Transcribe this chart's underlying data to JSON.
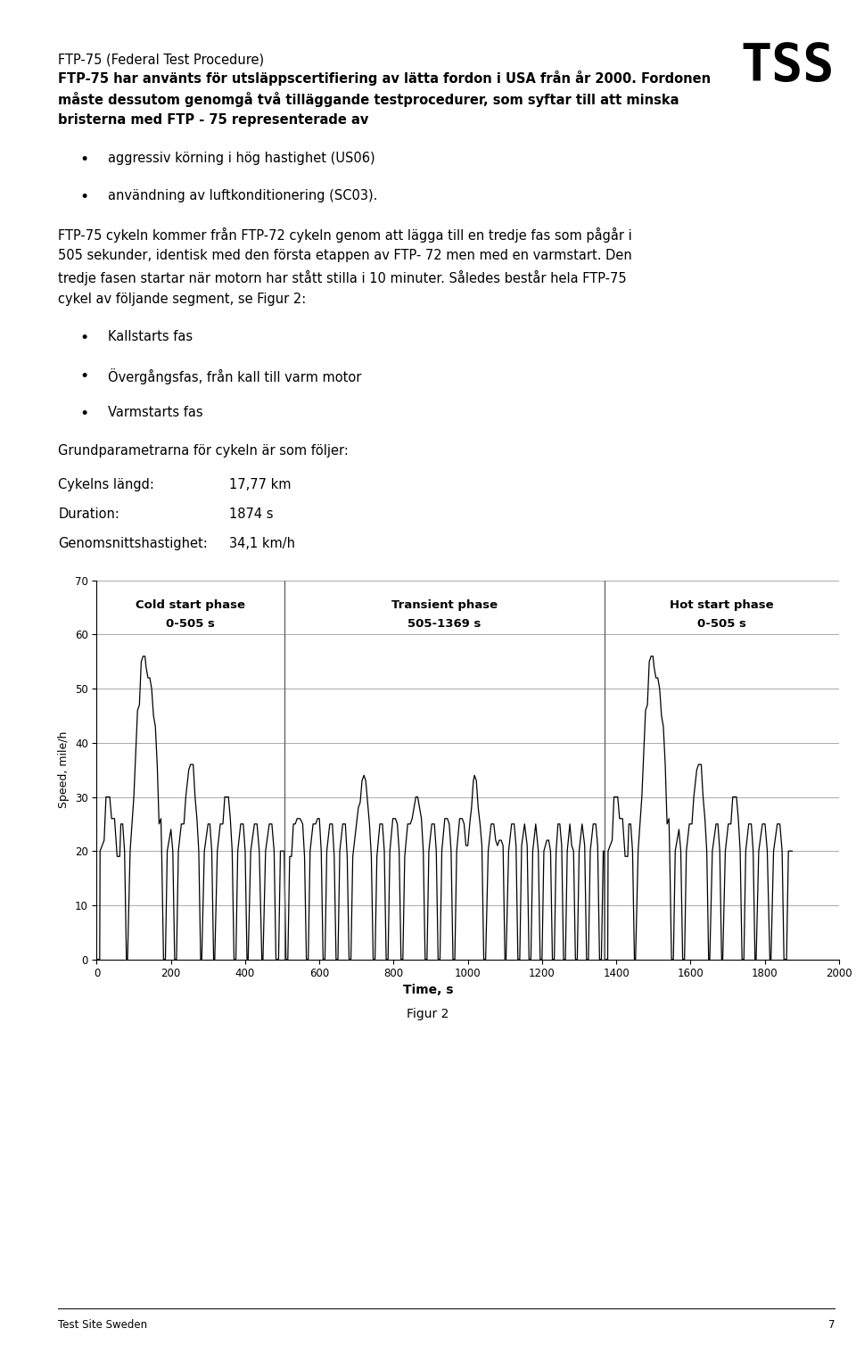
{
  "page_width": 9.6,
  "page_height": 15.17,
  "background_color": "#ffffff",
  "title_line1": "FTP-75 (Federal Test Procedure)",
  "chart": {
    "xlabel": "Time, s",
    "ylabel": "Speed, mile/h",
    "figcaption": "Figur 2",
    "xlim": [
      0,
      2000
    ],
    "ylim": [
      0,
      70
    ],
    "yticks": [
      0,
      10,
      20,
      30,
      40,
      50,
      60,
      70
    ],
    "xticks": [
      0,
      200,
      400,
      600,
      800,
      1000,
      1200,
      1400,
      1600,
      1800,
      2000
    ],
    "phase1_label1": "Cold start phase",
    "phase1_label2": "0-505 s",
    "phase2_label1": "Transient phase",
    "phase2_label2": "505-1369 s",
    "phase3_label1": "Hot start phase",
    "phase3_label2": "0-505 s",
    "vline1_x": 505,
    "vline2_x": 1369,
    "hline_y": 60,
    "grid_color": "#aaaaaa",
    "line_color": "#000000",
    "phase_line_color": "#666666"
  },
  "footer_text": "Test Site Sweden",
  "footer_page": "7",
  "tss_logo": "TSS",
  "params_keys": [
    "Cykelns längd:",
    "Duration:",
    "Genomsnittshastighet:"
  ],
  "params_vals": [
    "17,77 km",
    "1874 s",
    "34,1 km/h"
  ]
}
